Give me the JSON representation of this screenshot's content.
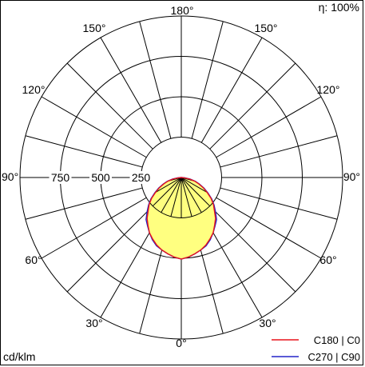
{
  "chart_data": {
    "type": "polar",
    "efficiency_label": "η: 100%",
    "unit_label": "cd/klm",
    "radial_ticks": [
      "250",
      "500",
      "750"
    ],
    "radial_values": [
      250,
      500,
      750
    ],
    "r_max": 1000,
    "angle_labels": {
      "bottom": "0°",
      "top": "180°",
      "left_90": "90°",
      "right_90": "90°",
      "left_30": "30°",
      "right_30": "30°",
      "left_60": "60°",
      "right_60": "60°",
      "left_120": "120°",
      "right_120": "120°",
      "left_150": "150°",
      "right_150": "150°"
    },
    "legend": [
      {
        "name": "C180 | C0",
        "color": "#e8141c"
      },
      {
        "name": "C270 | C90",
        "color": "#2323c8"
      }
    ],
    "fill_color": "#ffff80",
    "angles_deg": [
      0,
      5,
      10,
      15,
      20,
      25,
      30,
      35,
      40,
      45,
      50,
      55,
      60,
      65,
      70,
      75,
      80,
      85,
      90
    ],
    "series": [
      {
        "name": "C180 | C0",
        "values": [
          505,
          495,
          480,
          465,
          445,
          420,
          395,
          360,
          330,
          290,
          260,
          225,
          185,
          150,
          115,
          85,
          50,
          15,
          0
        ]
      },
      {
        "name": "C270 | C90",
        "values": [
          505,
          495,
          480,
          465,
          450,
          425,
          395,
          365,
          340,
          300,
          265,
          230,
          190,
          155,
          120,
          90,
          55,
          20,
          0
        ]
      }
    ]
  }
}
